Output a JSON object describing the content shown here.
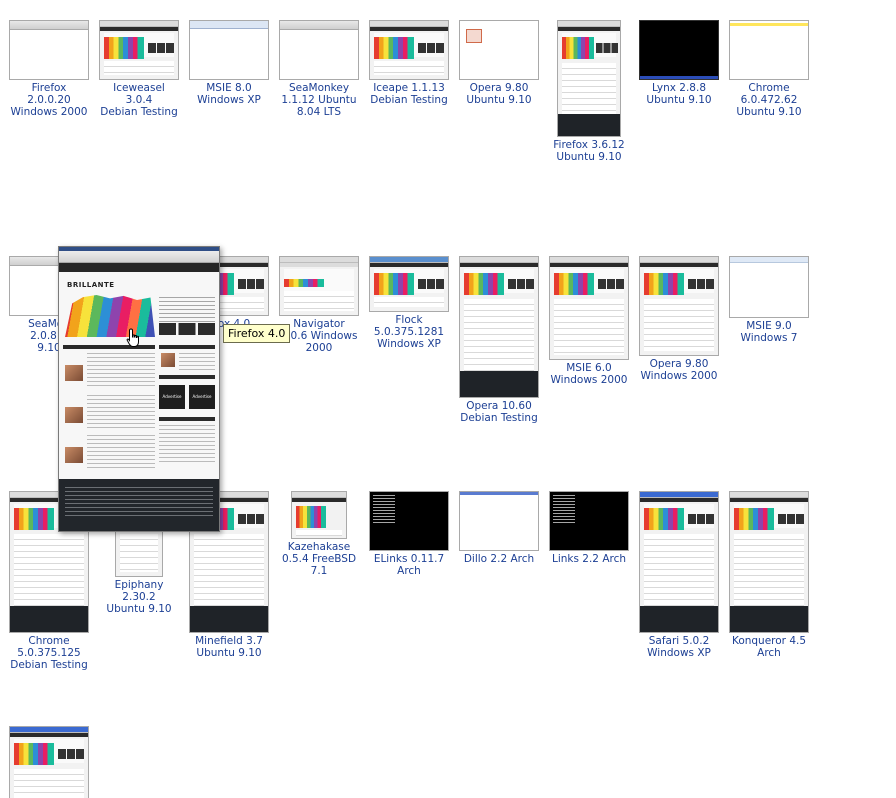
{
  "thumbnails": [
    {
      "label": [
        "Firefox 2.0.0.20",
        "Windows 2000"
      ]
    },
    {
      "label": [
        "Iceweasel 3.0.4",
        "Debian Testing"
      ]
    },
    {
      "label": [
        "MSIE 8.0",
        "Windows XP"
      ]
    },
    {
      "label": [
        "SeaMonkey",
        "1.1.12 Ubuntu",
        "8.04 LTS"
      ]
    },
    {
      "label": [
        "Iceape 1.1.13",
        "Debian Testing"
      ]
    },
    {
      "label": [
        "Opera 9.80",
        "Ubuntu 9.10"
      ]
    },
    {
      "label": [
        "Firefox 3.6.12",
        "Ubuntu 9.10"
      ]
    },
    {
      "label": [
        "Lynx 2.8.8",
        "Ubuntu 9.10"
      ]
    },
    {
      "label": [
        "Chrome",
        "6.0.472.62",
        "Ubuntu 9.10"
      ]
    },
    {
      "label": [
        "SeaMon",
        "2.0.8 U",
        "9.10"
      ]
    },
    {
      "label": [
        "efox 4.0"
      ]
    },
    {
      "label": [
        "Navigator",
        "0.0.6 Windows",
        "2000"
      ]
    },
    {
      "label": [
        "Flock",
        "5.0.375.1281",
        "Windows XP"
      ]
    },
    {
      "label": [
        "Opera 10.60",
        "Debian Testing"
      ]
    },
    {
      "label": [
        "MSIE 6.0",
        "Windows 2000"
      ]
    },
    {
      "label": [
        "Opera 9.80",
        "Windows 2000"
      ]
    },
    {
      "label": [
        "MSIE 9.0",
        "Windows 7"
      ]
    },
    {
      "label": [
        "Chrome",
        "5.0.375.125",
        "Debian Testing"
      ]
    },
    {
      "label": [
        "Epiphany 2.30.2",
        "Ubuntu 9.10"
      ]
    },
    {
      "label": [
        "Minefield 3.7",
        "Ubuntu 9.10"
      ]
    },
    {
      "label": [
        "Kazehakase",
        "0.5.4 FreeBSD",
        "7.1"
      ]
    },
    {
      "label": [
        "ELinks 0.11.7",
        "Arch"
      ]
    },
    {
      "label": [
        "Dillo 2.2 Arch"
      ]
    },
    {
      "label": [
        "Links 2.2 Arch"
      ]
    },
    {
      "label": [
        "Safari 5.0.2",
        "Windows XP"
      ]
    },
    {
      "label": [
        "Konqueror 4.5",
        "Arch"
      ]
    },
    {
      "label": []
    }
  ],
  "tooltip": {
    "text": "Firefox 4.0"
  },
  "preview": {
    "logo": "BRILLANTE",
    "ad_left": "Advertise Here",
    "ad_right": "Advertise Here"
  }
}
